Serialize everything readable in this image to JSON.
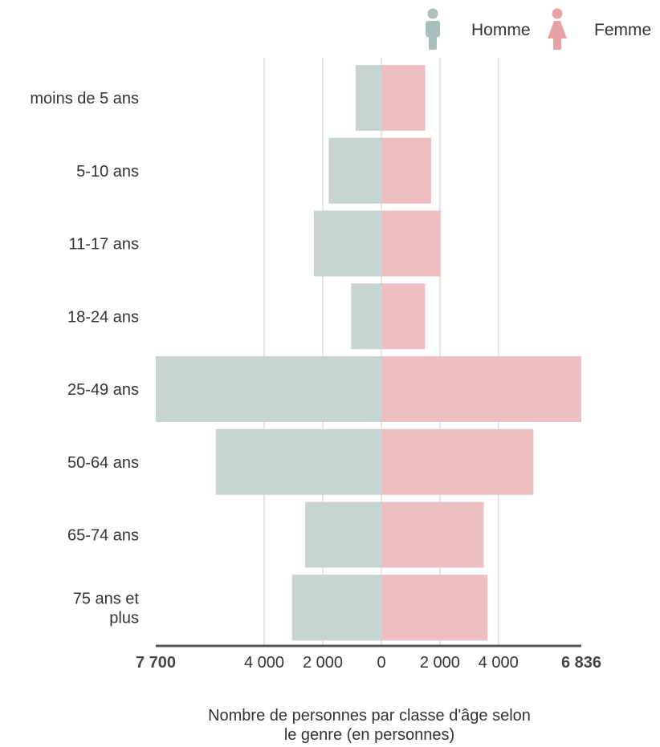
{
  "legend": {
    "male_label": "Homme",
    "female_label": "Femme",
    "male_icon": "male-person-icon",
    "female_icon": "female-person-icon"
  },
  "colors": {
    "male": "#c7d5d2",
    "female": "#edbfc0",
    "male_icon": "#a9bfbb",
    "female_icon": "#e7a2a4",
    "grid": "#dddddd",
    "axis": "#555555"
  },
  "caption": {
    "line1": "Nombre de personnes par classe d'âge selon",
    "line2": "le genre (en personnes)"
  },
  "chart_data": {
    "type": "bar",
    "orientation": "horizontal",
    "layout": "population-pyramid",
    "categories": [
      [
        "moins de 5 ans"
      ],
      [
        "5-10 ans"
      ],
      [
        "11-17 ans"
      ],
      [
        "18-24 ans"
      ],
      [
        "25-49 ans"
      ],
      [
        "50-64 ans"
      ],
      [
        "65-74 ans"
      ],
      [
        "75 ans et",
        "plus"
      ]
    ],
    "series": [
      {
        "name": "Homme",
        "side": "left",
        "values": [
          880,
          1800,
          2300,
          1030,
          7700,
          5650,
          2600,
          3050
        ]
      },
      {
        "name": "Femme",
        "side": "right",
        "values": [
          1500,
          1700,
          2030,
          1490,
          6836,
          5200,
          3500,
          3630
        ]
      }
    ],
    "x_ticks_left": [
      {
        "value": 7700,
        "label": "7 700",
        "bold": true
      },
      {
        "value": 4000,
        "label": "4 000"
      },
      {
        "value": 2000,
        "label": "2 000"
      },
      {
        "value": 0,
        "label": "0"
      }
    ],
    "x_ticks_right": [
      {
        "value": 2000,
        "label": "2 000"
      },
      {
        "value": 4000,
        "label": "4 000"
      },
      {
        "value": 6836,
        "label": "6 836",
        "bold": true
      }
    ],
    "xlim_left": [
      0,
      7700
    ],
    "xlim_right": [
      0,
      6836
    ],
    "grid": true,
    "legend_position": "top-right"
  }
}
